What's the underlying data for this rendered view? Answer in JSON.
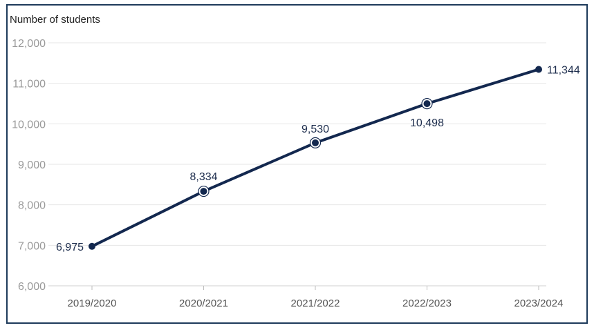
{
  "chart_data": {
    "type": "line",
    "title": "",
    "xlabel": "",
    "ylabel": "Number of students",
    "ylim": [
      6000,
      12000
    ],
    "yticks": [
      "6,000",
      "7,000",
      "8,000",
      "9,000",
      "10,000",
      "11,000",
      "12,000"
    ],
    "ytick_values": [
      6000,
      7000,
      8000,
      9000,
      10000,
      11000,
      12000
    ],
    "categories": [
      "2019/2020",
      "2020/2021",
      "2021/2022",
      "2022/2023",
      "2023/2024"
    ],
    "values": [
      6975,
      8334,
      9530,
      10498,
      11344
    ],
    "data_labels": [
      "6,975",
      "8,334",
      "9,530",
      "10,498",
      "11,344"
    ],
    "grid": true,
    "line_color": "#13284f",
    "grid_color": "#e6e6e6"
  }
}
